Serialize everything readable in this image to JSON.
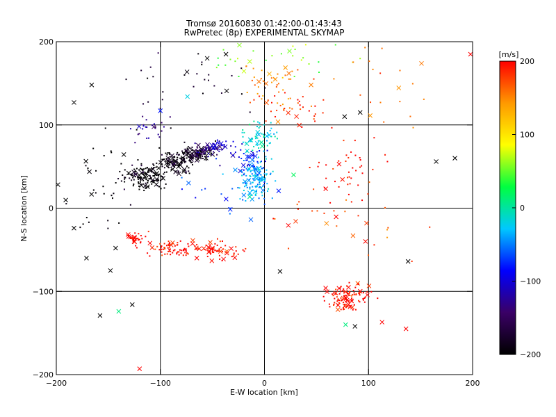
{
  "chart_data": {
    "type": "scatter",
    "title": "Tromsø 20160830 01:42:00-01:43:43",
    "subtitle": "RwPretec (8p) EXPERIMENTAL SKYMAP",
    "xlabel": "E-W location [km]",
    "ylabel": "N-S location [km]",
    "xlim": [
      -200,
      200
    ],
    "ylim": [
      -200,
      200
    ],
    "x_ticks": [
      -200,
      -100,
      0,
      100,
      200
    ],
    "y_ticks": [
      -200,
      -100,
      0,
      100,
      200
    ],
    "x_tick_labels": [
      "−200",
      "−100",
      "0",
      "100",
      "200"
    ],
    "y_tick_labels": [
      "−200",
      "−100",
      "0",
      "100",
      "200"
    ],
    "grid_lines": [
      -100,
      0,
      100
    ],
    "grid": true,
    "colorbar": {
      "label": "[m/s]",
      "range": [
        -200,
        200
      ],
      "ticks": [
        200,
        100,
        0,
        -100,
        -200
      ],
      "tick_labels": [
        "200",
        "100",
        "0",
        "−100",
        "−200"
      ],
      "colors": [
        "#000000",
        "#3a0066",
        "#0000ff",
        "#00c8ff",
        "#00ff40",
        "#ffff00",
        "#ff9900",
        "#ff0000"
      ]
    },
    "clusters": [
      {
        "center": [
          -115,
          38
        ],
        "spread": [
          14,
          10
        ],
        "count": 140,
        "v": -200
      },
      {
        "center": [
          -85,
          55
        ],
        "spread": [
          14,
          10
        ],
        "count": 110,
        "v": -195
      },
      {
        "center": [
          -65,
          65
        ],
        "spread": [
          10,
          6
        ],
        "count": 90,
        "v": -190
      },
      {
        "center": [
          -55,
          70
        ],
        "spread": [
          10,
          6
        ],
        "count": 40,
        "v": -140
      },
      {
        "center": [
          -45,
          75
        ],
        "spread": [
          8,
          6
        ],
        "count": 30,
        "v": -110
      },
      {
        "center": [
          -110,
          95
        ],
        "spread": [
          12,
          12
        ],
        "count": 25,
        "v": -130
      },
      {
        "center": [
          -20,
          60
        ],
        "spread": [
          14,
          12
        ],
        "count": 40,
        "v": -90
      },
      {
        "center": [
          -10,
          35
        ],
        "spread": [
          10,
          18
        ],
        "count": 130,
        "v": -35
      },
      {
        "center": [
          -5,
          85
        ],
        "spread": [
          14,
          14
        ],
        "count": 60,
        "v": -15
      },
      {
        "center": [
          10,
          150
        ],
        "spread": [
          28,
          18
        ],
        "count": 45,
        "v": 150
      },
      {
        "center": [
          30,
          120
        ],
        "spread": [
          22,
          16
        ],
        "count": 35,
        "v": 185
      },
      {
        "center": [
          80,
          40
        ],
        "spread": [
          22,
          30
        ],
        "count": 45,
        "v": 195
      },
      {
        "center": [
          -125,
          -38
        ],
        "spread": [
          8,
          6
        ],
        "count": 30,
        "v": 200
      },
      {
        "center": [
          -85,
          -48
        ],
        "spread": [
          18,
          7
        ],
        "count": 80,
        "v": 195
      },
      {
        "center": [
          -42,
          -50
        ],
        "spread": [
          16,
          8
        ],
        "count": 55,
        "v": 195
      },
      {
        "center": [
          80,
          -108
        ],
        "spread": [
          14,
          12
        ],
        "count": 110,
        "v": 198
      },
      {
        "center": [
          -150,
          25
        ],
        "spread": [
          30,
          50
        ],
        "count": 40,
        "v": -200
      },
      {
        "center": [
          -80,
          150
        ],
        "spread": [
          40,
          35
        ],
        "count": 35,
        "v": -180
      },
      {
        "center": [
          10,
          180
        ],
        "spread": [
          70,
          15
        ],
        "count": 30,
        "v": 60
      },
      {
        "center": [
          120,
          140
        ],
        "spread": [
          30,
          40
        ],
        "count": 20,
        "v": 160
      },
      {
        "center": [
          60,
          -30
        ],
        "spread": [
          60,
          40
        ],
        "count": 30,
        "v": 170
      },
      {
        "center": [
          -30,
          30
        ],
        "spread": [
          40,
          30
        ],
        "count": 35,
        "v": -60
      }
    ],
    "highlighted_points": [
      {
        "x": -183,
        "y": -24,
        "v": -200
      },
      {
        "x": -171,
        "y": -60,
        "v": -200
      },
      {
        "x": -143,
        "y": -48,
        "v": -200
      },
      {
        "x": -148,
        "y": -75,
        "v": -200
      },
      {
        "x": -158,
        "y": -129,
        "v": -200
      },
      {
        "x": -127,
        "y": -116,
        "v": -200
      },
      {
        "x": -183,
        "y": 127,
        "v": -200
      },
      {
        "x": -166,
        "y": 148,
        "v": -200
      },
      {
        "x": 165,
        "y": 56,
        "v": -200
      },
      {
        "x": 183,
        "y": 60,
        "v": -200
      },
      {
        "x": 138,
        "y": -64,
        "v": -200
      },
      {
        "x": 87,
        "y": -142,
        "v": -200
      },
      {
        "x": 15,
        "y": -76,
        "v": -200
      },
      {
        "x": 92,
        "y": 115,
        "v": -200
      },
      {
        "x": 77,
        "y": 110,
        "v": -200
      },
      {
        "x": -37,
        "y": 185,
        "v": -200
      },
      {
        "x": -55,
        "y": 180,
        "v": -200
      },
      {
        "x": -74,
        "y": 134,
        "v": -20
      },
      {
        "x": -100,
        "y": 117,
        "v": -80
      },
      {
        "x": 28,
        "y": 40,
        "v": 20
      },
      {
        "x": -120,
        "y": -193,
        "v": 200
      },
      {
        "x": 113,
        "y": -137,
        "v": 200
      },
      {
        "x": 136,
        "y": -145,
        "v": 200
      },
      {
        "x": 198,
        "y": 185,
        "v": 200
      },
      {
        "x": -140,
        "y": -124,
        "v": 10
      },
      {
        "x": 78,
        "y": -140,
        "v": 10
      },
      {
        "x": -110,
        "y": -42,
        "v": 200
      },
      {
        "x": -65,
        "y": -60,
        "v": 200
      },
      {
        "x": -53,
        "y": -52,
        "v": 200
      }
    ]
  }
}
